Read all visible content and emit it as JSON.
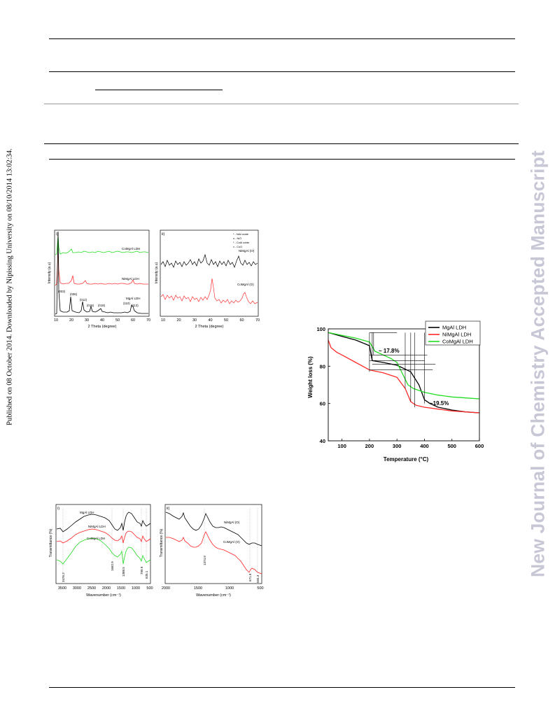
{
  "sidebar": {
    "published_note": "Published on 08 October 2014. Downloaded by Nipissing University on 08/10/2014 13:02:34.",
    "journal_watermark": "New Journal of Chemistry Accepted Manuscript"
  },
  "xrd_panel_i": {
    "label": "i)",
    "ylabel": "Intensity (a.u)",
    "xlabel": "2 Theta (degree)",
    "xticks": [
      "10",
      "20",
      "30",
      "40",
      "50",
      "60",
      "70"
    ],
    "series_labels": [
      "CoMgAl LDH",
      "NiMgAl LDH",
      "MgAl LDH"
    ],
    "peak_labels": [
      "(003)",
      "(006)",
      "(012)",
      "(015)",
      "(018)",
      "(110)",
      "(113)"
    ]
  },
  "xrd_panel_ii": {
    "label": "ii)",
    "ylabel": "Intensity (a.u)",
    "xlabel": "2 Theta (degree)",
    "xticks": [
      "10",
      "20",
      "30",
      "40",
      "50",
      "60",
      "70"
    ],
    "legend": [
      "* - NiAl oxide",
      "o - NiO",
      "* - CoAl oxide",
      "x - CoO"
    ],
    "series_labels": [
      "NiMgAl (O)",
      "CoMgAl (O)"
    ]
  },
  "ftir_panel_i": {
    "label": "i)",
    "ylabel": "Transmittance (%)",
    "xlabel": "Wavenumber (cm⁻¹)",
    "xticks": [
      "3500",
      "3000",
      "2500",
      "2000",
      "1500",
      "1000",
      "500"
    ],
    "series_labels": [
      "MgAl LDH",
      "NiMgAl LDH",
      "CoMgAl LDH"
    ],
    "band_labels": [
      "3476.2",
      "1662.9",
      "1388.5",
      "799.9",
      "635.1"
    ]
  },
  "ftir_panel_ii": {
    "label": "ii)",
    "ylabel": "Transmittance (%)",
    "xlabel": "Wavenumber (cm⁻¹)",
    "xticks": [
      "2000",
      "1500",
      "1000",
      "500"
    ],
    "series_labels": [
      "NiMgAl (O)",
      "CoMgAl (O)"
    ],
    "band_labels": [
      "1374.9",
      "671.9",
      "555.3"
    ]
  },
  "chart_data": [
    {
      "type": "line",
      "title": "",
      "xlabel": "Temperature (°C)",
      "ylabel": "Weight loss (%)",
      "xlim": [
        50,
        600
      ],
      "ylim": [
        40,
        100
      ],
      "xticks": [
        "100",
        "200",
        "300",
        "400",
        "500",
        "600"
      ],
      "yticks": [
        "40",
        "60",
        "80",
        "100"
      ],
      "legend_position": "top-right",
      "annotations": [
        "~ 17.8%",
        "~19.5%"
      ],
      "series": [
        {
          "name": "MgAl LDH",
          "color": "#000000",
          "x": [
            50,
            100,
            150,
            200,
            210,
            250,
            300,
            350,
            380,
            400,
            420,
            450,
            500,
            550,
            600
          ],
          "y": [
            98,
            96,
            94,
            91,
            83,
            82,
            80.5,
            77,
            70,
            62,
            60,
            58,
            56.5,
            55.5,
            55
          ]
        },
        {
          "name": "NiMgAl LDH",
          "color": "#ff2a2a",
          "x": [
            50,
            60,
            80,
            100,
            150,
            200,
            250,
            300,
            330,
            350,
            370,
            400,
            450,
            500,
            550,
            600
          ],
          "y": [
            94,
            90,
            87.5,
            86,
            82,
            78,
            76.5,
            74,
            68,
            61,
            59,
            58,
            57,
            56,
            55.5,
            55
          ]
        },
        {
          "name": "CoMgAl LDH",
          "color": "#22dd22",
          "x": [
            50,
            100,
            150,
            200,
            220,
            250,
            280,
            300,
            320,
            340,
            360,
            400,
            450,
            500,
            550,
            600
          ],
          "y": [
            98,
            96.5,
            95,
            93,
            88,
            86,
            84,
            82,
            76,
            70,
            68,
            66,
            64.5,
            63.5,
            63,
            62.5
          ]
        }
      ]
    }
  ]
}
